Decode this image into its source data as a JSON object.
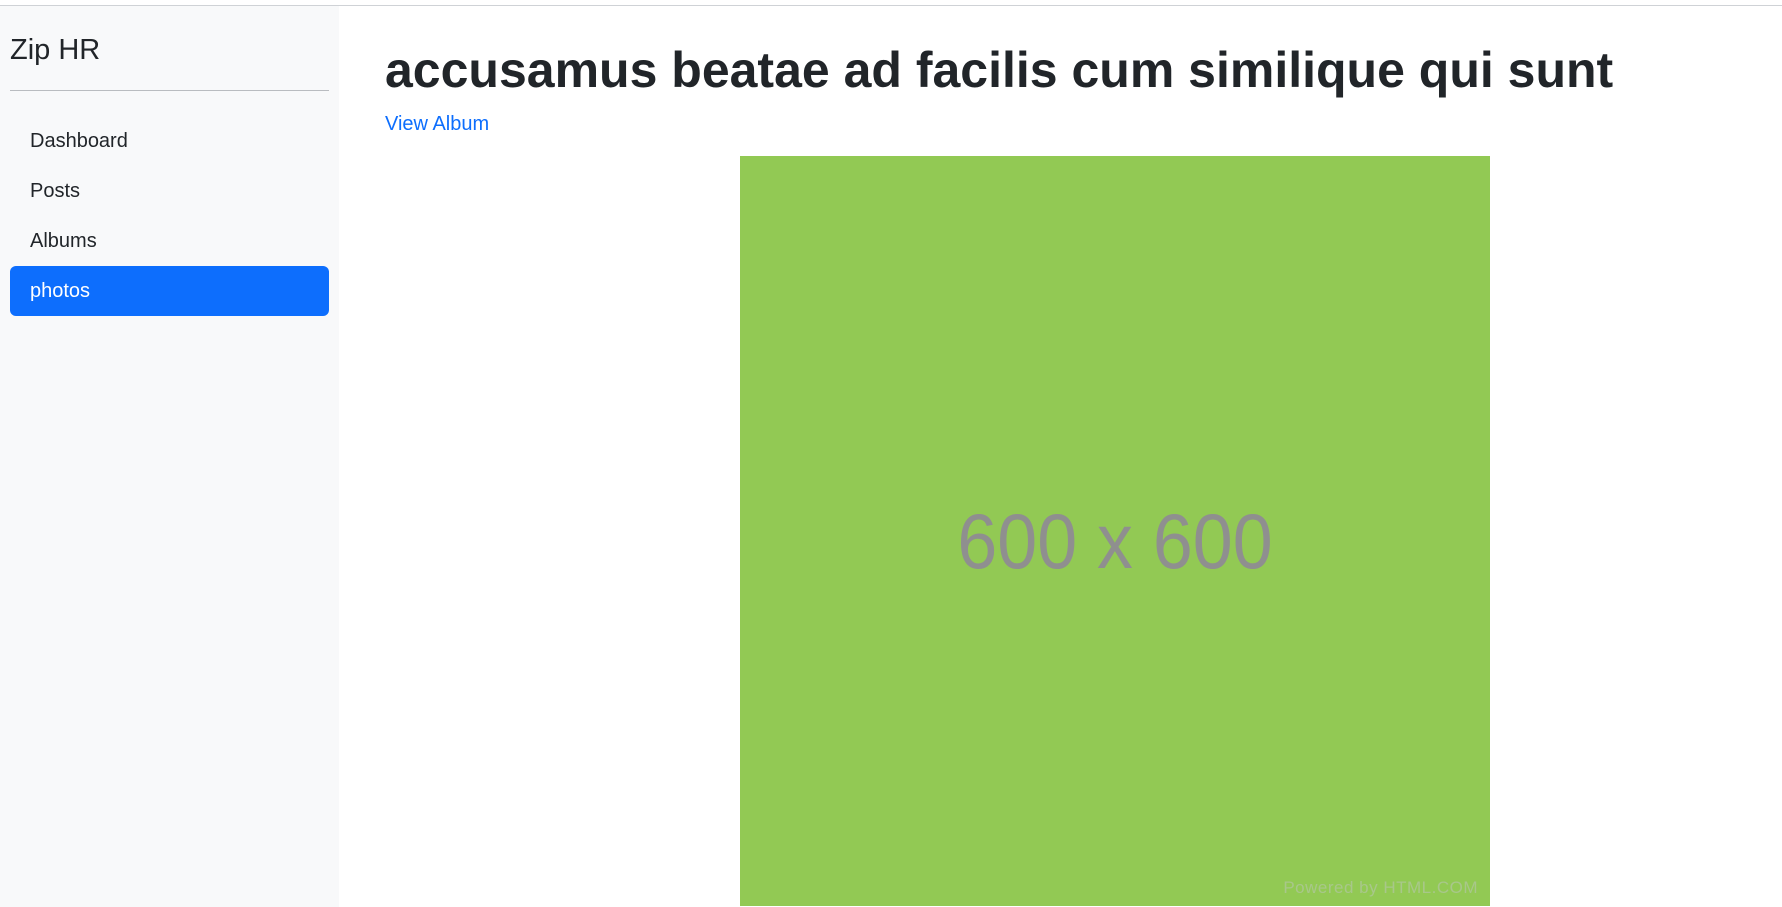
{
  "sidebar": {
    "brand": "Zip HR",
    "items": [
      {
        "label": "Dashboard",
        "active": false
      },
      {
        "label": "Posts",
        "active": false
      },
      {
        "label": "Albums",
        "active": false
      },
      {
        "label": "photos",
        "active": true
      }
    ]
  },
  "main": {
    "title": "accusamus beatae ad facilis cum similique qui sunt",
    "view_album_label": "View Album",
    "photo": {
      "label": "600 x 600",
      "watermark": "Powered by HTML.COM",
      "background_color": "#92c954"
    }
  },
  "colors": {
    "accent": "#0d6efd",
    "sidebar_bg": "#f8f9fa"
  }
}
